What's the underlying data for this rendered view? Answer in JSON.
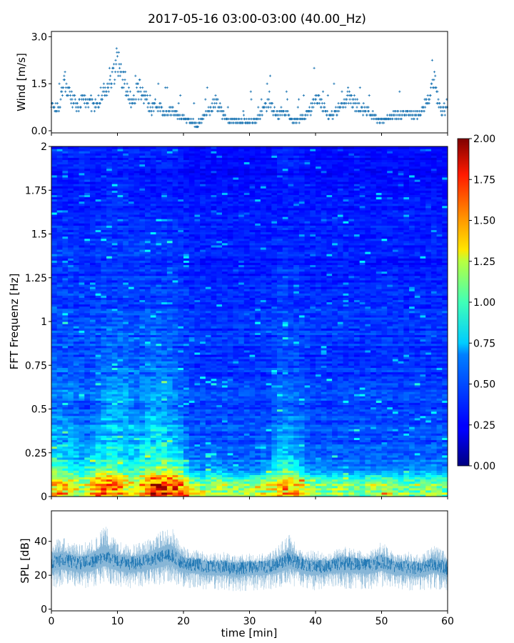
{
  "figure": {
    "title": "2017-05-16 03:00-03:00 (40.00_Hz)"
  },
  "chart_data": [
    {
      "type": "scatter",
      "panel": "wind",
      "ylabel": "Wind [m/s]",
      "xlim": [
        0,
        60
      ],
      "ylim": [
        0,
        3.1
      ],
      "yticks": [
        0.0,
        1.5,
        3.0
      ],
      "ytick_labels": [
        "0.0",
        "1.5",
        "3.0"
      ],
      "marker": "plus",
      "color": "#1f77b4",
      "series": [
        {
          "x": [
            0,
            1,
            2,
            3,
            4,
            5,
            6,
            7,
            8,
            9,
            10,
            11,
            12,
            13,
            14,
            15,
            16,
            17,
            18,
            19,
            20,
            21,
            22,
            23,
            24,
            25,
            26,
            27,
            28,
            29,
            30,
            31,
            32,
            33,
            34,
            35,
            36,
            37,
            38,
            39,
            40,
            41,
            42,
            43,
            44,
            45,
            46,
            47,
            48,
            49,
            50,
            51,
            52,
            53,
            54,
            55,
            56,
            57,
            58,
            59,
            60
          ],
          "values": [
            0.9,
            0.7,
            1.6,
            1.0,
            0.8,
            1.0,
            0.9,
            0.8,
            1.3,
            1.4,
            2.3,
            1.6,
            1.0,
            1.3,
            1.2,
            0.7,
            0.9,
            0.6,
            0.6,
            0.5,
            0.4,
            0.3,
            0.2,
            0.4,
            0.7,
            0.9,
            0.5,
            0.3,
            0.3,
            0.3,
            0.3,
            0.3,
            0.6,
            1.0,
            0.5,
            0.6,
            0.5,
            0.3,
            0.4,
            0.6,
            1.0,
            0.8,
            0.5,
            0.6,
            0.8,
            1.1,
            0.9,
            0.7,
            0.6,
            0.4,
            0.3,
            0.4,
            0.5,
            0.5,
            0.6,
            0.5,
            0.6,
            0.9,
            1.6,
            0.6,
            0.8
          ]
        }
      ]
    },
    {
      "type": "heatmap",
      "panel": "spectrogram",
      "ylabel": "FFT Frequenz [Hz]",
      "xlim": [
        0,
        60
      ],
      "ylim": [
        0,
        2
      ],
      "yticks": [
        0,
        0.25,
        0.5,
        0.75,
        1,
        1.25,
        1.5,
        1.75,
        2
      ],
      "ytick_labels": [
        "0",
        "0.25",
        "0.5",
        "0.75",
        "1",
        "1.25",
        "1.5",
        "1.75",
        "2"
      ],
      "colormap": "jet",
      "colorbar": {
        "vmin": 0.0,
        "vmax": 2.0,
        "ticks": [
          0.0,
          0.25,
          0.5,
          0.75,
          1.0,
          1.25,
          1.5,
          1.75,
          2.0
        ],
        "tick_labels": [
          "0.00",
          "0.25",
          "0.50",
          "0.75",
          "1.00",
          "1.25",
          "1.50",
          "1.75",
          "2.00"
        ],
        "placement": "right"
      },
      "x_centers": [
        1,
        3,
        5,
        7,
        9,
        11,
        13,
        15,
        17,
        19,
        21,
        23,
        25,
        27,
        29,
        31,
        33,
        35,
        37,
        39,
        41,
        43,
        45,
        47,
        49,
        51,
        53,
        55,
        57,
        59
      ],
      "y_centers": [
        0.05,
        0.15,
        0.3,
        0.5,
        0.7,
        0.9,
        1.1,
        1.3,
        1.5,
        1.7,
        1.9
      ],
      "values": [
        [
          1.4,
          1.3,
          1.1,
          1.6,
          1.7,
          1.3,
          1.2,
          1.7,
          1.8,
          1.7,
          1.2,
          1.1,
          1.2,
          1.1,
          1.1,
          1.1,
          1.2,
          1.5,
          1.4,
          1.1,
          1.0,
          1.1,
          1.1,
          1.0,
          1.2,
          1.1,
          1.0,
          1.0,
          1.1,
          1.0
        ],
        [
          0.9,
          0.8,
          0.7,
          0.9,
          1.0,
          0.8,
          0.8,
          1.0,
          1.0,
          1.0,
          0.6,
          0.5,
          0.6,
          0.5,
          0.5,
          0.5,
          0.6,
          0.9,
          0.8,
          0.5,
          0.5,
          0.5,
          0.5,
          0.5,
          0.5,
          0.5,
          0.5,
          0.5,
          0.5,
          0.5
        ],
        [
          0.6,
          0.6,
          0.5,
          0.6,
          0.7,
          0.6,
          0.6,
          0.7,
          0.7,
          0.6,
          0.4,
          0.4,
          0.4,
          0.4,
          0.4,
          0.4,
          0.4,
          0.6,
          0.5,
          0.4,
          0.4,
          0.4,
          0.4,
          0.4,
          0.4,
          0.4,
          0.4,
          0.4,
          0.4,
          0.4
        ],
        [
          0.5,
          0.5,
          0.4,
          0.5,
          0.6,
          0.6,
          0.5,
          0.6,
          0.6,
          0.5,
          0.4,
          0.4,
          0.4,
          0.4,
          0.4,
          0.4,
          0.4,
          0.5,
          0.5,
          0.4,
          0.4,
          0.4,
          0.4,
          0.4,
          0.4,
          0.4,
          0.4,
          0.4,
          0.4,
          0.4
        ],
        [
          0.45,
          0.45,
          0.4,
          0.45,
          0.5,
          0.5,
          0.45,
          0.5,
          0.5,
          0.45,
          0.35,
          0.35,
          0.35,
          0.35,
          0.35,
          0.35,
          0.35,
          0.45,
          0.4,
          0.35,
          0.35,
          0.35,
          0.35,
          0.35,
          0.35,
          0.35,
          0.35,
          0.35,
          0.35,
          0.35
        ],
        [
          0.4,
          0.4,
          0.4,
          0.4,
          0.45,
          0.45,
          0.4,
          0.45,
          0.45,
          0.4,
          0.35,
          0.35,
          0.35,
          0.35,
          0.35,
          0.35,
          0.35,
          0.4,
          0.4,
          0.35,
          0.35,
          0.35,
          0.35,
          0.35,
          0.35,
          0.35,
          0.35,
          0.35,
          0.35,
          0.35
        ],
        [
          0.4,
          0.4,
          0.35,
          0.4,
          0.4,
          0.4,
          0.4,
          0.4,
          0.4,
          0.4,
          0.35,
          0.35,
          0.35,
          0.35,
          0.35,
          0.35,
          0.35,
          0.4,
          0.35,
          0.35,
          0.35,
          0.35,
          0.35,
          0.35,
          0.35,
          0.35,
          0.35,
          0.35,
          0.35,
          0.35
        ],
        [
          0.35,
          0.35,
          0.35,
          0.35,
          0.35,
          0.35,
          0.35,
          0.35,
          0.35,
          0.35,
          0.3,
          0.3,
          0.3,
          0.3,
          0.3,
          0.3,
          0.3,
          0.35,
          0.35,
          0.3,
          0.3,
          0.3,
          0.3,
          0.3,
          0.3,
          0.3,
          0.3,
          0.3,
          0.3,
          0.3
        ],
        [
          0.35,
          0.35,
          0.3,
          0.35,
          0.35,
          0.35,
          0.35,
          0.35,
          0.35,
          0.35,
          0.3,
          0.3,
          0.3,
          0.3,
          0.3,
          0.3,
          0.3,
          0.3,
          0.3,
          0.3,
          0.3,
          0.3,
          0.3,
          0.3,
          0.3,
          0.3,
          0.3,
          0.3,
          0.3,
          0.3
        ],
        [
          0.3,
          0.3,
          0.3,
          0.3,
          0.35,
          0.35,
          0.3,
          0.3,
          0.3,
          0.3,
          0.3,
          0.3,
          0.3,
          0.3,
          0.3,
          0.3,
          0.3,
          0.3,
          0.3,
          0.3,
          0.3,
          0.3,
          0.3,
          0.3,
          0.3,
          0.3,
          0.3,
          0.3,
          0.3,
          0.3
        ],
        [
          0.3,
          0.3,
          0.3,
          0.3,
          0.3,
          0.3,
          0.3,
          0.3,
          0.3,
          0.3,
          0.25,
          0.25,
          0.25,
          0.25,
          0.25,
          0.25,
          0.25,
          0.3,
          0.3,
          0.25,
          0.25,
          0.25,
          0.25,
          0.25,
          0.25,
          0.25,
          0.25,
          0.25,
          0.25,
          0.25
        ]
      ]
    },
    {
      "type": "area",
      "panel": "spl",
      "xlabel": "time [min]",
      "ylabel": "SPL [dB]",
      "xlim": [
        0,
        60
      ],
      "ylim": [
        -1,
        58
      ],
      "xticks": [
        0,
        10,
        20,
        30,
        40,
        50,
        60
      ],
      "xtick_labels": [
        "0",
        "10",
        "20",
        "30",
        "40",
        "50",
        "60"
      ],
      "yticks": [
        0,
        20,
        40
      ],
      "ytick_labels": [
        "0",
        "20",
        "40"
      ],
      "color": "#1f77b4",
      "x": [
        0,
        2,
        4,
        6,
        8,
        10,
        12,
        14,
        16,
        18,
        20,
        22,
        24,
        26,
        28,
        30,
        32,
        34,
        36,
        38,
        40,
        42,
        44,
        46,
        48,
        50,
        52,
        54,
        56,
        58,
        60
      ],
      "series": [
        {
          "name": "",
          "role": "upper",
          "values": [
            42,
            42,
            38,
            41,
            50,
            40,
            38,
            40,
            46,
            50,
            37,
            35,
            33,
            34,
            32,
            33,
            33,
            36,
            45,
            35,
            35,
            33,
            38,
            36,
            34,
            40,
            33,
            34,
            32,
            38,
            33
          ]
        },
        {
          "name": "",
          "role": "median",
          "values": [
            28,
            29,
            27,
            28,
            31,
            28,
            27,
            28,
            30,
            32,
            27,
            26,
            25,
            25,
            24,
            25,
            25,
            26,
            30,
            26,
            25,
            26,
            27,
            27,
            26,
            28,
            25,
            25,
            24,
            27,
            24
          ]
        },
        {
          "name": "",
          "role": "lower",
          "values": [
            12,
            14,
            13,
            12,
            16,
            13,
            12,
            13,
            14,
            16,
            12,
            12,
            11,
            11,
            10,
            11,
            11,
            12,
            14,
            12,
            11,
            12,
            12,
            12,
            11,
            13,
            11,
            11,
            10,
            12,
            10
          ]
        }
      ]
    }
  ]
}
